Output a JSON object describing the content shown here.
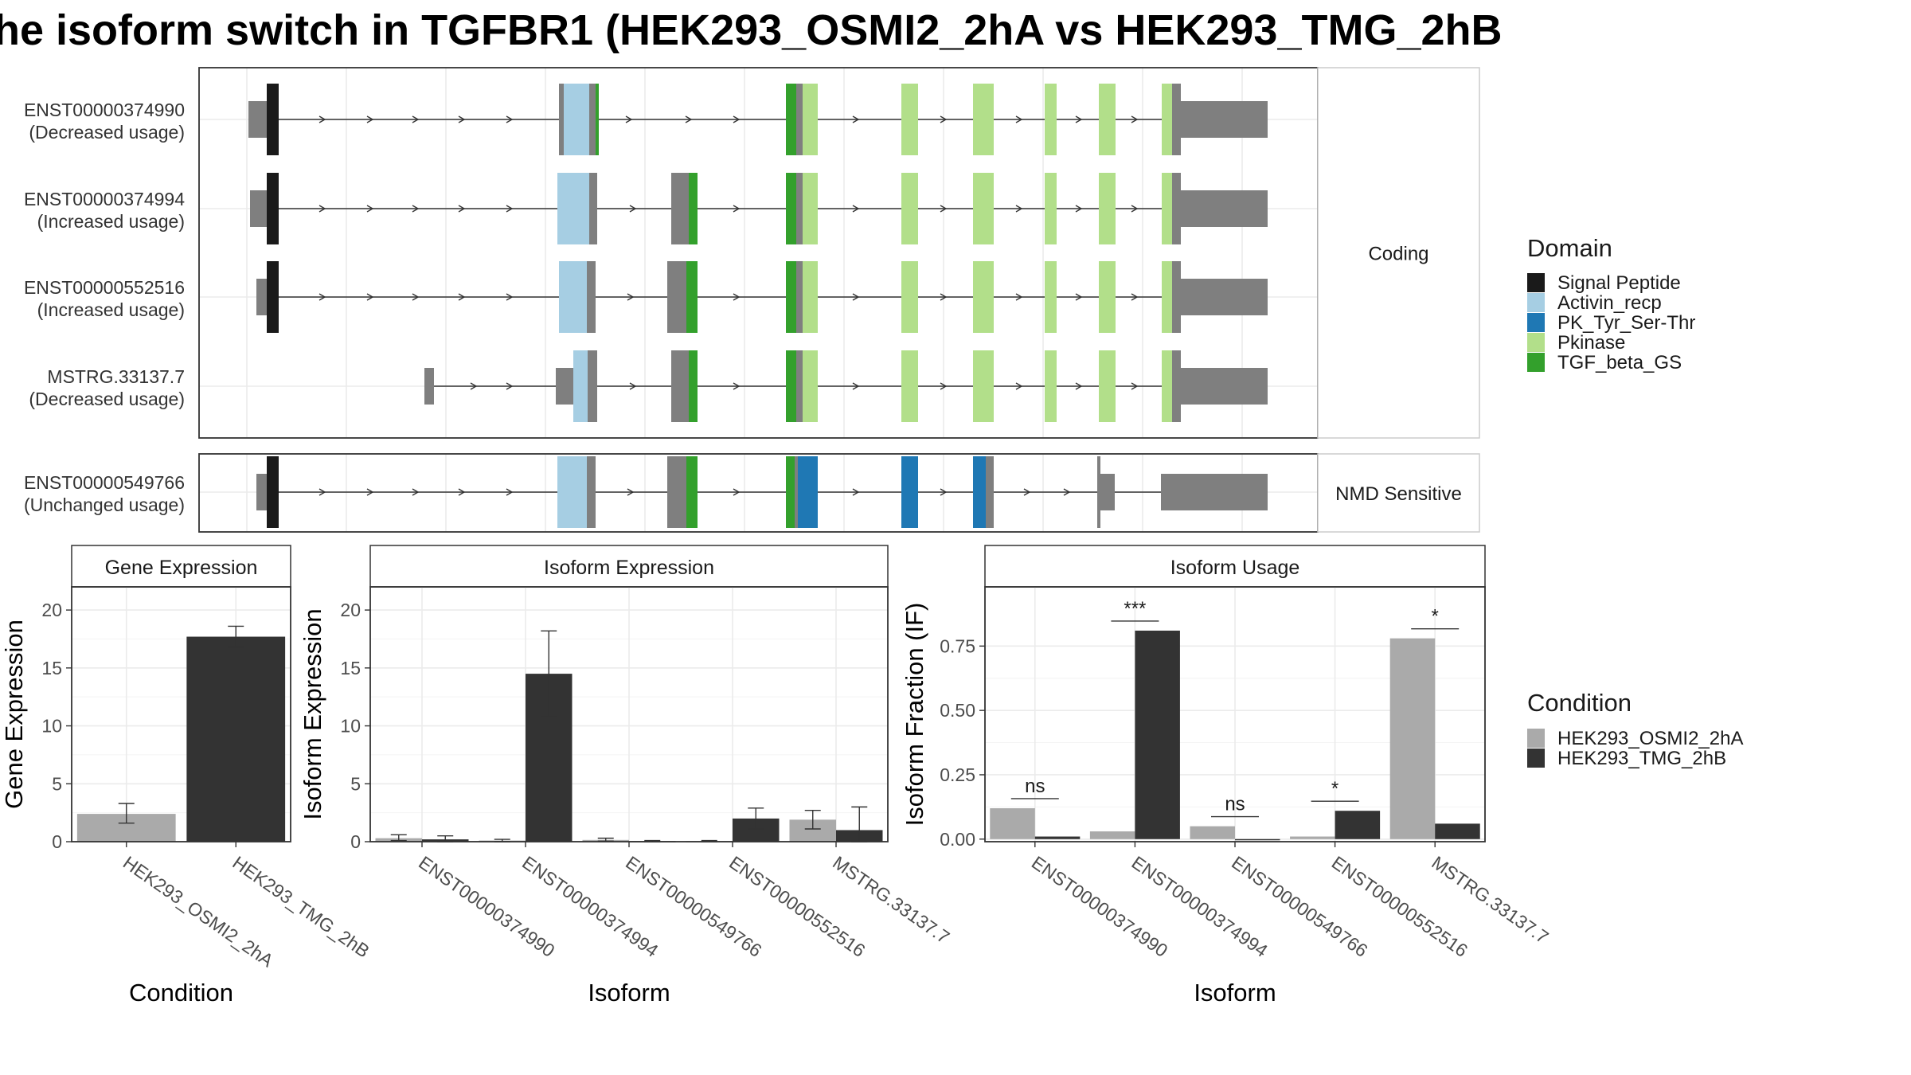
{
  "title": "he isoform switch in TGFBR1 (HEK293_OSMI2_2hA vs HEK293_TMG_2hB",
  "colors": {
    "signal_peptide": "#1a1a1a",
    "activin_recp": "#a6cee3",
    "pk_tyr_ser_thr": "#1f78b4",
    "pkinase": "#b2df8a",
    "tgf_beta_gs": "#33a02c",
    "exon": "#7f7f7f",
    "cond_a": "#aaaaaa",
    "cond_b": "#333333"
  },
  "structure": {
    "coding_label": "Coding",
    "nmd_label": "NMD Sensitive",
    "transcripts": [
      {
        "id": "ENST00000374990",
        "usage": "(Decreased usage)",
        "group": "coding"
      },
      {
        "id": "ENST00000374994",
        "usage": "(Increased usage)",
        "group": "coding"
      },
      {
        "id": "ENST00000552516",
        "usage": "(Increased usage)",
        "group": "coding"
      },
      {
        "id": "MSTRG.33137.7",
        "usage": "(Decreased usage)",
        "group": "coding"
      },
      {
        "id": "ENST00000549766",
        "usage": "(Unchanged usage)",
        "group": "nmd"
      }
    ]
  },
  "legend": {
    "domain_title": "Domain",
    "domains": [
      {
        "label": "Signal Peptide",
        "color_key": "signal_peptide"
      },
      {
        "label": "Activin_recp",
        "color_key": "activin_recp"
      },
      {
        "label": "PK_Tyr_Ser-Thr",
        "color_key": "pk_tyr_ser_thr"
      },
      {
        "label": "Pkinase",
        "color_key": "pkinase"
      },
      {
        "label": "TGF_beta_GS",
        "color_key": "tgf_beta_gs"
      }
    ],
    "condition_title": "Condition",
    "conditions": [
      {
        "label": "HEK293_OSMI2_2hA",
        "color_key": "cond_a"
      },
      {
        "label": "HEK293_TMG_2hB",
        "color_key": "cond_b"
      }
    ]
  },
  "chart_data": [
    {
      "type": "bar",
      "title": "Gene Expression",
      "xlabel": "Condition",
      "ylabel": "Gene Expression",
      "ylim": [
        0,
        22
      ],
      "yticks": [
        0,
        5,
        10,
        15,
        20
      ],
      "categories": [
        "HEK293_OSMI2_2hA",
        "HEK293_TMG_2hB"
      ],
      "values": [
        2.4,
        17.7
      ],
      "errors": [
        [
          1.6,
          3.3
        ],
        [
          16.8,
          18.6
        ]
      ]
    },
    {
      "type": "bar",
      "title": "Isoform Expression",
      "xlabel": "Isoform",
      "ylabel": "Isoform Expression",
      "ylim": [
        0,
        22
      ],
      "yticks": [
        0,
        5,
        10,
        15,
        20
      ],
      "categories": [
        "ENST00000374990",
        "ENST00000374994",
        "ENST00000549766",
        "ENST00000552516",
        "MSTRG.33137.7"
      ],
      "series": [
        {
          "name": "HEK293_OSMI2_2hA",
          "values": [
            0.3,
            0.1,
            0.15,
            0.05,
            1.9
          ],
          "errors": [
            [
              0.1,
              0.6
            ],
            [
              0.0,
              0.2
            ],
            [
              0.05,
              0.3
            ],
            [
              0.0,
              0.1
            ],
            [
              1.1,
              2.7
            ]
          ]
        },
        {
          "name": "HEK293_TMG_2hB",
          "values": [
            0.2,
            14.5,
            0.05,
            2.0,
            1.0
          ],
          "errors": [
            [
              0.0,
              0.5
            ],
            [
              10.8,
              18.2
            ],
            [
              0.0,
              0.1
            ],
            [
              1.1,
              2.9
            ],
            [
              0.0,
              3.0
            ]
          ]
        }
      ]
    },
    {
      "type": "bar",
      "title": "Isoform Usage",
      "xlabel": "Isoform",
      "ylabel": "Isoform Fraction (IF)",
      "ylim": [
        -0.01,
        0.98
      ],
      "yticks": [
        0.0,
        0.25,
        0.5,
        0.75
      ],
      "ytick_labels": [
        "0.00",
        "0.25",
        "0.50",
        "0.75"
      ],
      "categories": [
        "ENST00000374990",
        "ENST00000374994",
        "ENST00000549766",
        "ENST00000552516",
        "MSTRG.33137.7"
      ],
      "series": [
        {
          "name": "HEK293_OSMI2_2hA",
          "values": [
            0.12,
            0.03,
            0.05,
            0.01,
            0.78
          ]
        },
        {
          "name": "HEK293_TMG_2hB",
          "values": [
            0.01,
            0.81,
            0.0,
            0.11,
            0.06
          ]
        }
      ],
      "significance": [
        "ns",
        "***",
        "ns",
        "*",
        "*"
      ]
    }
  ]
}
